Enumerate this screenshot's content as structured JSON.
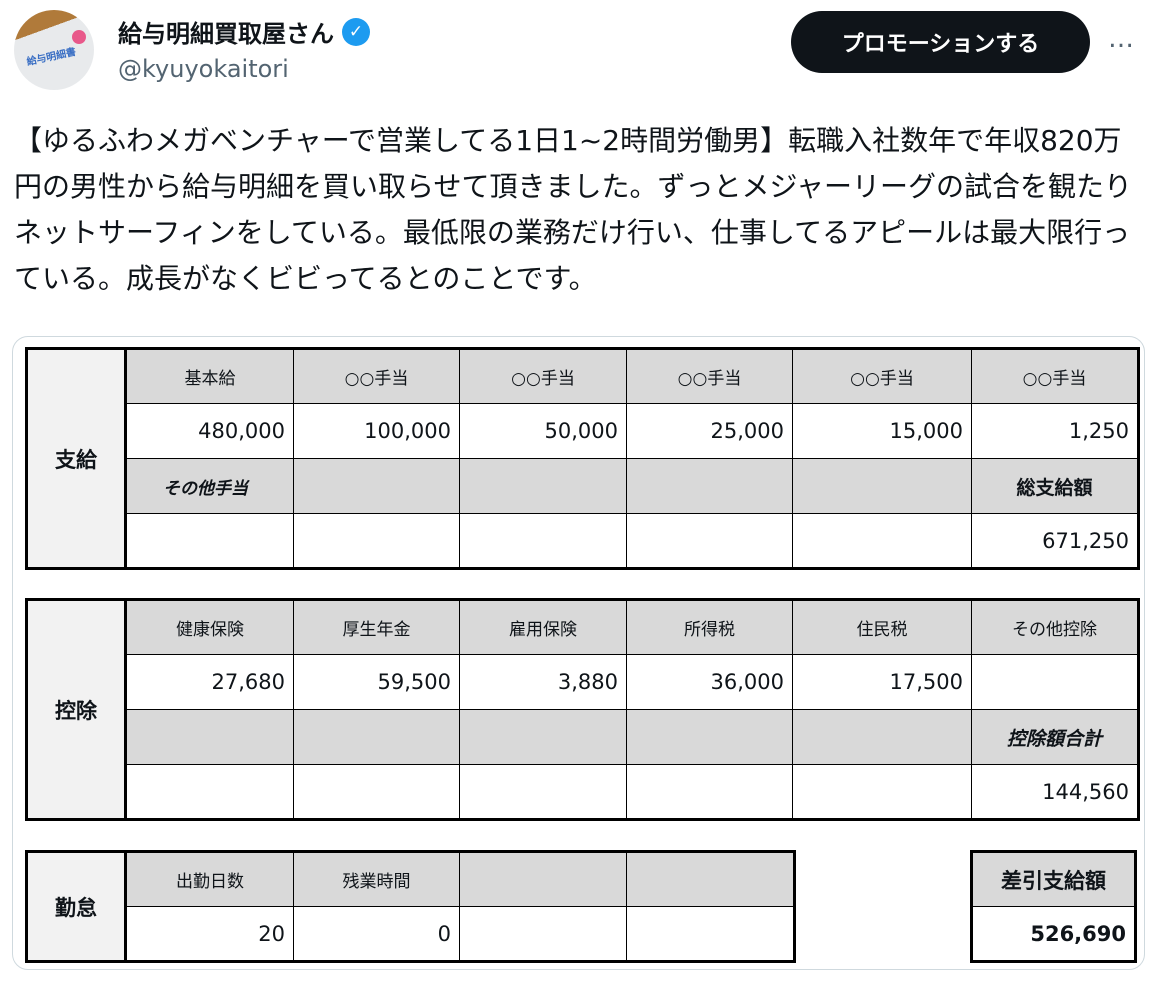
{
  "tweet": {
    "author_name": "給与明細買取屋さん",
    "handle": "@kyuyokaitori",
    "avatar_label": "給与明細書",
    "promote_label": "プロモーションする",
    "more_label": "…",
    "text": "【ゆるふわメガベンチャーで営業してる1日1~2時間労働男】転職入社数年で年収820万円の男性から給与明細を買い取らせて頂きました。ずっとメジャーリーグの試合を観たりネットサーフィンをしている。最低限の業務だけ行い、仕事してるアピールは最大限行っている。成長がなくビビってるとのことです。"
  },
  "payslip": {
    "pay": {
      "title": "支給",
      "headers": [
        "基本給",
        "○○手当",
        "○○手当",
        "○○手当",
        "○○手当",
        "○○手当"
      ],
      "values": [
        "480,000",
        "100,000",
        "50,000",
        "25,000",
        "15,000",
        "1,250"
      ],
      "other_label": "その他手当",
      "total_label": "総支給額",
      "total": "671,250"
    },
    "deduction": {
      "title": "控除",
      "headers": [
        "健康保険",
        "厚生年金",
        "雇用保険",
        "所得税",
        "住民税",
        "その他控除"
      ],
      "values": [
        "27,680",
        "59,500",
        "3,880",
        "36,000",
        "17,500",
        ""
      ],
      "total_label": "控除額合計",
      "total": "144,560"
    },
    "attendance": {
      "title": "勤怠",
      "headers": [
        "出勤日数",
        "残業時間",
        "",
        ""
      ],
      "values": [
        "20",
        "0",
        "",
        ""
      ]
    },
    "net": {
      "label": "差引支給額",
      "value": "526,690"
    }
  }
}
